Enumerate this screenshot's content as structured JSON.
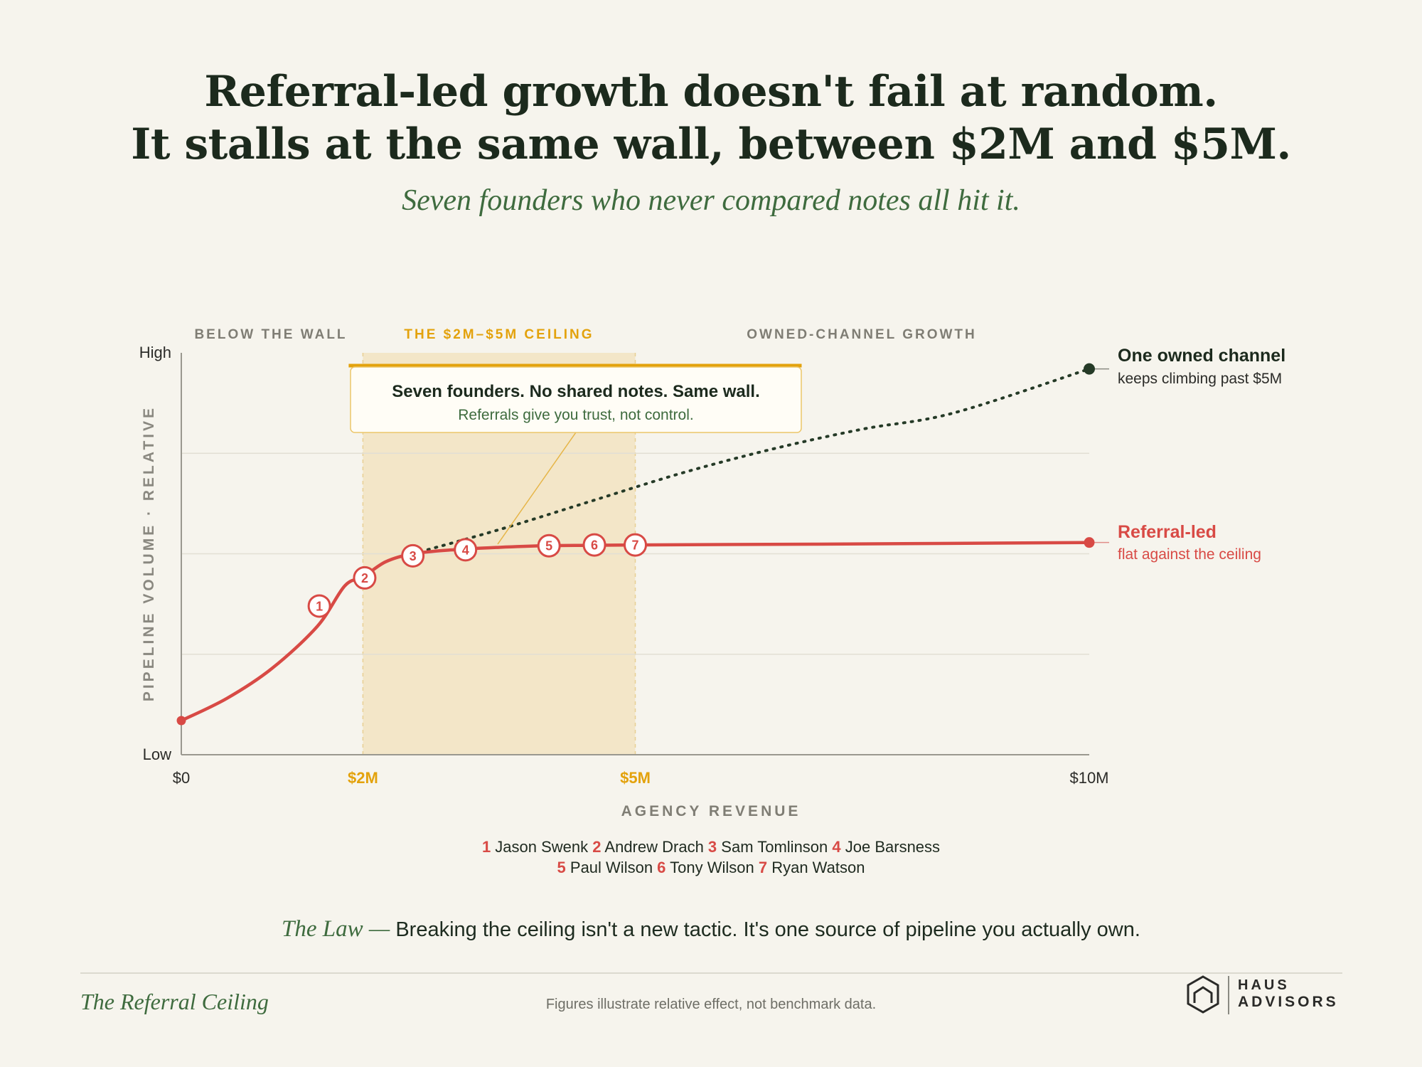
{
  "header": {
    "title_line1": "Referral-led growth doesn't fail at random.",
    "title_line2": "It stalls at the same wall, between $2M and $5M.",
    "subtitle": "Seven founders who never compared notes all hit it."
  },
  "colors": {
    "referral": "#d84a45",
    "owned": "#253a27",
    "ceiling_band": "#f3e6c8",
    "ceiling_accent": "#e3a20c",
    "green_text": "#3e6b3e",
    "background": "#f6f4ed"
  },
  "chart_data": {
    "type": "line",
    "xlabel": "AGENCY REVENUE",
    "ylabel": "PIPELINE VOLUME · RELATIVE",
    "xlim": [
      0,
      10
    ],
    "ylim": [
      0,
      100
    ],
    "x_ticks": [
      {
        "value": 0,
        "label": "$0",
        "highlight": false
      },
      {
        "value": 2,
        "label": "$2M",
        "highlight": true
      },
      {
        "value": 5,
        "label": "$5M",
        "highlight": true
      },
      {
        "value": 10,
        "label": "$10M",
        "highlight": false
      }
    ],
    "y_ticks": [
      {
        "value": 100,
        "label": "High"
      },
      {
        "value": 0,
        "label": "Low"
      }
    ],
    "gridlines_y": [
      25,
      50,
      75
    ],
    "zones": [
      {
        "label": "BELOW THE WALL",
        "from": 0,
        "to": 2,
        "shaded": false
      },
      {
        "label": "THE $2M–$5M CEILING",
        "from": 2,
        "to": 5,
        "shaded": true
      },
      {
        "label": "OWNED-CHANNEL GROWTH",
        "from": 5,
        "to": 10,
        "shaded": false
      }
    ],
    "series": [
      {
        "name": "Referral-led",
        "note": "flat against the ceiling",
        "style": "solid",
        "x": [
          0,
          0.5,
          1,
          1.5,
          1.8,
          2,
          2.25,
          2.55,
          3,
          3.5,
          4,
          4.5,
          5,
          7,
          10
        ],
        "y": [
          8.5,
          14,
          21.5,
          32,
          42,
          52,
          56.5,
          58.5,
          60,
          60.8,
          51.2,
          51.3,
          51.4,
          51.7,
          52.2
        ]
      },
      {
        "name": "One owned channel",
        "note": "keeps climbing past $5M",
        "style": "dotted",
        "x": [
          2.55,
          3.5,
          4.5,
          5.5,
          6.5,
          7.5,
          8.5,
          10
        ],
        "y": [
          50,
          56,
          63,
          70,
          76,
          81,
          85,
          96
        ]
      }
    ],
    "founders": [
      {
        "n": "1",
        "name": "Jason Swenk",
        "x": 1.52,
        "y": 37
      },
      {
        "n": "2",
        "name": "Andrew Drach",
        "x": 2.02,
        "y": 44
      },
      {
        "n": "3",
        "name": "Sam Tomlinson",
        "x": 2.55,
        "y": 49.5
      },
      {
        "n": "4",
        "name": "Joe Barsness",
        "x": 3.13,
        "y": 51
      },
      {
        "n": "5",
        "name": "Paul Wilson",
        "x": 4.05,
        "y": 52
      },
      {
        "n": "6",
        "name": "Tony Wilson",
        "x": 4.55,
        "y": 52.2
      },
      {
        "n": "7",
        "name": "Ryan Watson",
        "x": 5.0,
        "y": 52.2
      }
    ],
    "callout": {
      "title": "Seven founders. No shared notes. Same wall.",
      "body": "Referrals give you trust, not control."
    }
  },
  "law": {
    "label": "The Law —",
    "text": "Breaking the ceiling isn't a new tactic. It's one source of pipeline you actually own."
  },
  "footer": {
    "title": "The Referral Ceiling",
    "note": "Figures illustrate relative effect, not benchmark data.",
    "brand_line1": "HAUS",
    "brand_line2": "ADVISORS",
    "brand_icon": "hexagon-house-icon"
  }
}
